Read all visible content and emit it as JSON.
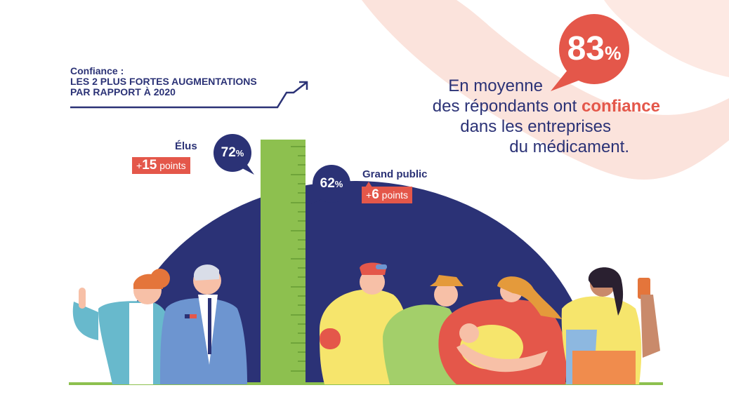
{
  "header": {
    "label": "Confiance :",
    "line2": "LES 2 PLUS FORTES AUGMENTATIONS",
    "line3": "PAR RAPPORT À 2020"
  },
  "key_stat": {
    "value": "83",
    "unit": "%",
    "line1": "En moyenne",
    "line2_prefix": "des répondants ont",
    "line2_highlight": "confiance",
    "line3": "dans les entreprises",
    "line4": "du médicament."
  },
  "groups": {
    "elus": {
      "label": "Élus",
      "value": "72",
      "unit": "%",
      "delta_sign": "+",
      "delta_value": "15",
      "delta_unit": "points"
    },
    "grand_public": {
      "label": "Grand public",
      "value": "62",
      "unit": "%",
      "delta_sign": "+",
      "delta_value": "6",
      "delta_unit": "points"
    }
  },
  "colors": {
    "navy": "#2b3276",
    "coral": "#e4574a",
    "green": "#8dc04f",
    "pale_pink": "#fbe3dc"
  },
  "icons": [
    "trend-arrow-icon",
    "ruler-icon",
    "speech-bubble-icon",
    "people-illustration"
  ]
}
